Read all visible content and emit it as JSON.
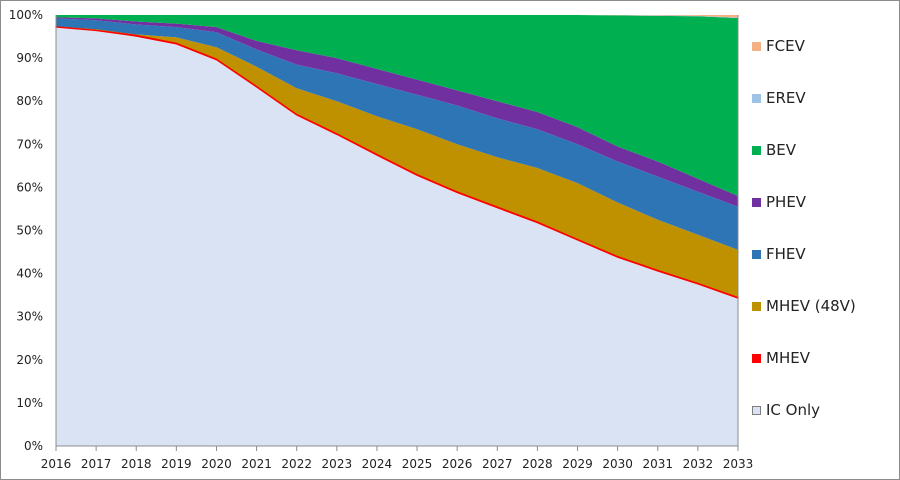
{
  "chart_data": {
    "type": "area",
    "stacked": "percent",
    "title": "",
    "xlabel": "",
    "ylabel": "",
    "ylim": [
      0,
      100
    ],
    "yticks": [
      "0%",
      "10%",
      "20%",
      "30%",
      "40%",
      "50%",
      "60%",
      "70%",
      "80%",
      "90%",
      "100%"
    ],
    "categories": [
      "2016",
      "2017",
      "2018",
      "2019",
      "2020",
      "2021",
      "2022",
      "2023",
      "2024",
      "2025",
      "2026",
      "2027",
      "2028",
      "2029",
      "2030",
      "2031",
      "2032",
      "2033"
    ],
    "legend_position": "right",
    "grid": false,
    "series": [
      {
        "name": "IC Only",
        "color": "#dae3f3",
        "values": [
          97.2,
          96.4,
          95.1,
          93.3,
          89.6,
          83.3,
          76.8,
          72.3,
          67.5,
          62.8,
          58.8,
          55.3,
          51.8,
          47.8,
          43.8,
          40.6,
          37.6,
          34.3
        ]
      },
      {
        "name": "MHEV",
        "color": "#ff0000",
        "values": [
          0.2,
          0.2,
          0.3,
          0.3,
          0.3,
          0.3,
          0.3,
          0.3,
          0.3,
          0.3,
          0.3,
          0.3,
          0.3,
          0.3,
          0.3,
          0.3,
          0.3,
          0.3
        ]
      },
      {
        "name": "MHEV (48V)",
        "color": "#bf9000",
        "values": [
          0.0,
          0.1,
          0.1,
          1.2,
          2.6,
          4.4,
          5.9,
          7.4,
          8.7,
          10.4,
          10.9,
          11.4,
          12.4,
          12.9,
          12.4,
          11.6,
          11.1,
          10.9
        ]
      },
      {
        "name": "FHEV",
        "color": "#2e75b6",
        "values": [
          1.8,
          2.1,
          2.3,
          2.4,
          3.5,
          4.0,
          5.5,
          6.5,
          7.5,
          8.0,
          9.0,
          9.0,
          9.0,
          9.0,
          9.5,
          10.0,
          10.0,
          10.0
        ]
      },
      {
        "name": "PHEV",
        "color": "#7030a0",
        "values": [
          0.3,
          0.4,
          0.7,
          0.8,
          1.2,
          2.0,
          3.3,
          3.5,
          3.5,
          3.5,
          3.5,
          4.0,
          4.0,
          4.0,
          3.5,
          3.5,
          3.0,
          2.5
        ]
      },
      {
        "name": "BEV",
        "color": "#00b050",
        "values": [
          0.5,
          0.8,
          1.5,
          2.0,
          2.8,
          6.0,
          8.2,
          10.0,
          12.5,
          15.0,
          17.5,
          20.0,
          22.5,
          26.0,
          30.4,
          33.8,
          37.7,
          41.3
        ]
      },
      {
        "name": "EREV",
        "color": "#9dc3e6",
        "values": [
          0,
          0,
          0,
          0,
          0,
          0,
          0,
          0,
          0,
          0,
          0,
          0,
          0,
          0,
          0.05,
          0.1,
          0.1,
          0.1
        ]
      },
      {
        "name": "FCEV",
        "color": "#f4b183",
        "values": [
          0,
          0,
          0,
          0,
          0,
          0,
          0,
          0,
          0,
          0,
          0,
          0,
          0,
          0,
          0.05,
          0.1,
          0.2,
          0.6
        ]
      }
    ]
  },
  "legend": {
    "items": [
      {
        "label": "FCEV",
        "color": "#f4b183"
      },
      {
        "label": "EREV",
        "color": "#9dc3e6"
      },
      {
        "label": "BEV",
        "color": "#00b050"
      },
      {
        "label": "PHEV",
        "color": "#7030a0"
      },
      {
        "label": "FHEV",
        "color": "#2e75b6"
      },
      {
        "label": "MHEV (48V)",
        "color": "#bf9000"
      },
      {
        "label": "MHEV",
        "color": "#ff0000"
      },
      {
        "label": "IC Only",
        "color": "#dae3f3"
      }
    ]
  }
}
